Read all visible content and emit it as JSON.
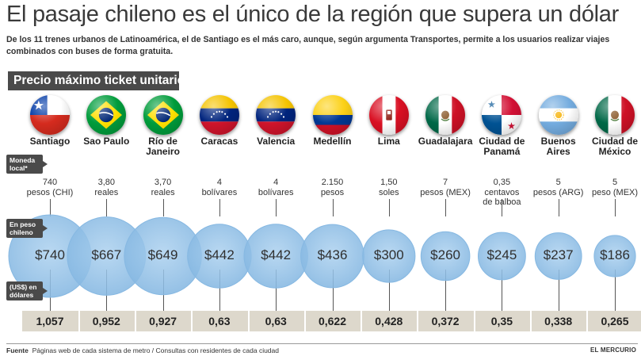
{
  "title": "El pasaje chileno es el único de la región que supera un dólar",
  "subtitle": "De los 11 trenes urbanos de Latinoamérica, el de Santiago es el más caro, aunque, según argumenta Transportes, permite a los usuarios realizar viajes combinados con buses de forma gratuita.",
  "section_label": "Precio máximo ticket unitario",
  "row_tags": {
    "local": "Moneda local*",
    "clp": "En peso chileno",
    "usd": "(US$) en dólares"
  },
  "footer": {
    "label": "Fuente",
    "text": "Páginas web de cada sistema de metro / Consultas con residentes de cada ciudad",
    "brand": "EL MERCURIO"
  },
  "colors": {
    "bubble": "#a9cfee",
    "bubble_stroke": "#86b8e2",
    "strip": "#ddd8cc",
    "tag": "#4a4a4a"
  },
  "chart_data": {
    "type": "bubble",
    "categories": [
      "Santiago",
      "Sao Paulo",
      "Río de Janeiro",
      "Caracas",
      "Valencia",
      "Medellín",
      "Lima",
      "Guadalajara",
      "Ciudad de Panamá",
      "Buenos Aires",
      "Ciudad de México"
    ],
    "flags": [
      "chile-flag-icon",
      "brazil-flag-icon",
      "brazil-flag-icon",
      "venezuela-flag-icon",
      "venezuela-flag-icon",
      "colombia-flag-icon",
      "peru-flag-icon",
      "mexico-flag-icon",
      "panama-flag-icon",
      "argentina-flag-icon",
      "mexico-flag-icon"
    ],
    "local_price": [
      [
        "740",
        "pesos (CHI)"
      ],
      [
        "3,80",
        "reales"
      ],
      [
        "3,70",
        "reales"
      ],
      [
        "4",
        "bolívares"
      ],
      [
        "4",
        "bolívares"
      ],
      [
        "2.150",
        "pesos"
      ],
      [
        "1,50",
        "soles"
      ],
      [
        "7",
        "pesos (MEX)"
      ],
      [
        "0,35",
        "centavos",
        "de balboa"
      ],
      [
        "5",
        "pesos (ARG)"
      ],
      [
        "5",
        "peso (MEX)"
      ]
    ],
    "clp_labels": [
      "$740",
      "$667",
      "$649",
      "$442",
      "$442",
      "$436",
      "$300",
      "$260",
      "$245",
      "$237",
      "$186"
    ],
    "clp_values": [
      740,
      667,
      649,
      442,
      442,
      436,
      300,
      260,
      245,
      237,
      186
    ],
    "usd_labels": [
      "1,057",
      "0,952",
      "0,927",
      "0,63",
      "0,63",
      "0,622",
      "0,428",
      "0,372",
      "0,35",
      "0,338",
      "0,265"
    ],
    "usd_values": [
      1.057,
      0.952,
      0.927,
      0.63,
      0.63,
      0.622,
      0.428,
      0.372,
      0.35,
      0.338,
      0.265
    ]
  }
}
